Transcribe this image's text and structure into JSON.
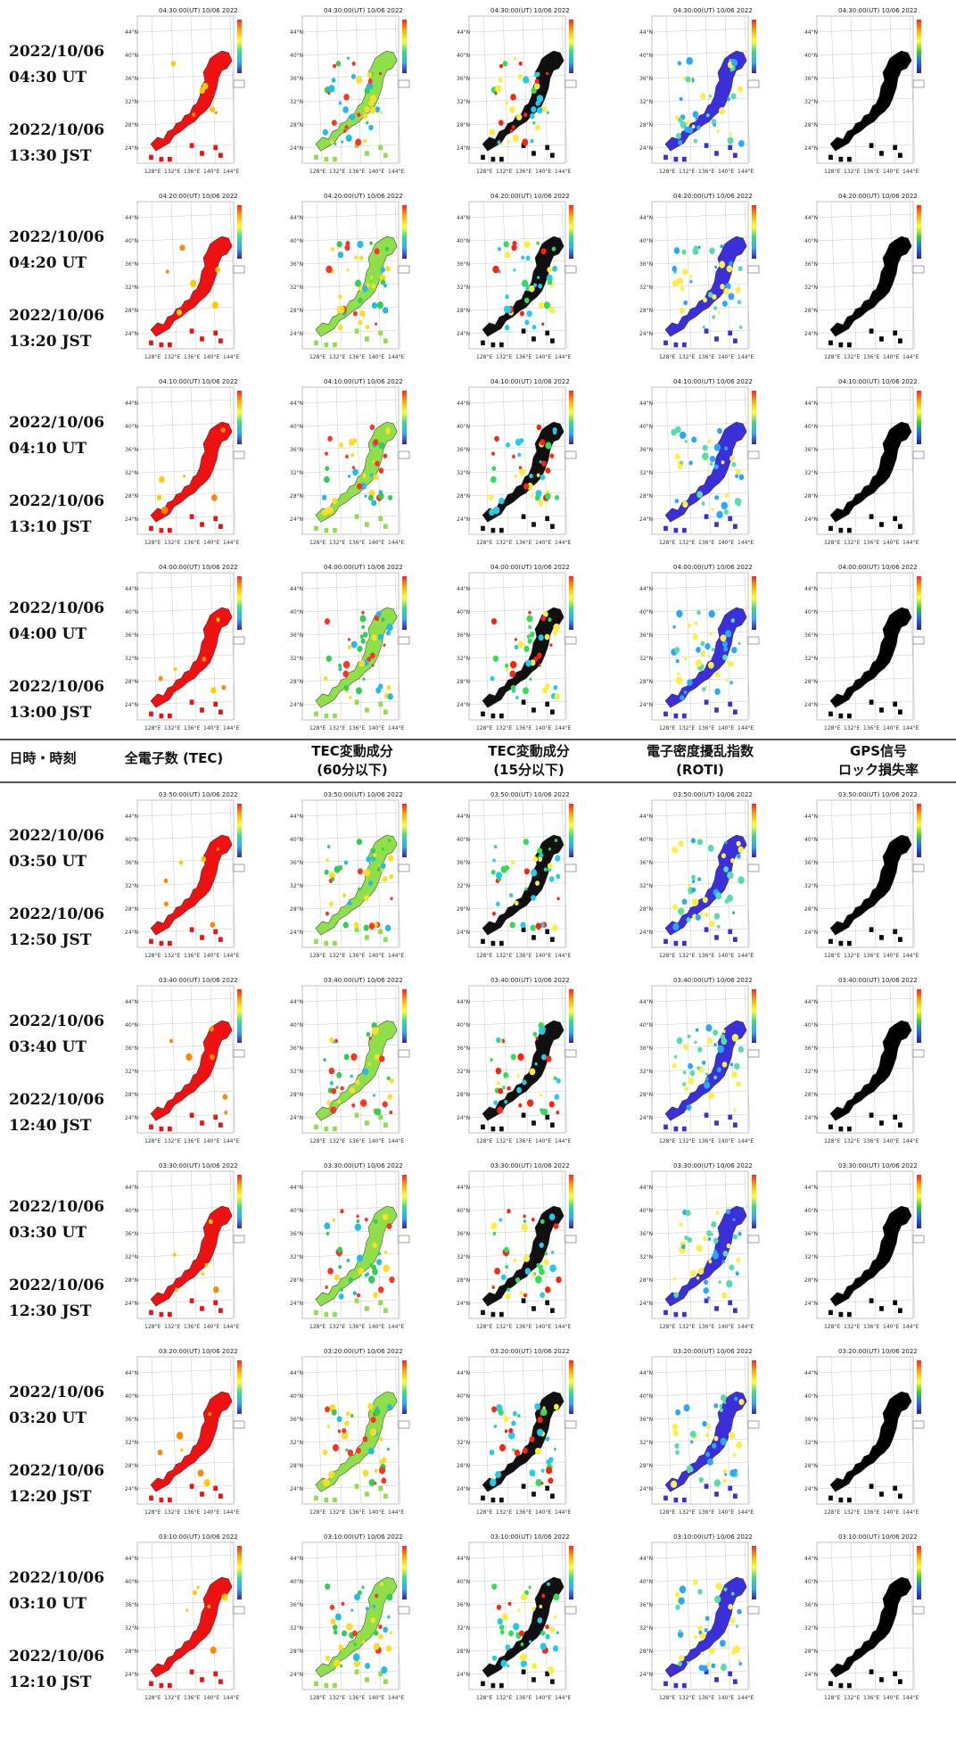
{
  "rows_top": [
    {
      "ut_date": "2022/10/06",
      "ut": "04:30 UT",
      "jst_date": "2022/10/06",
      "jst": "13:30 JST",
      "map_title": "04:30:00(UT) 10/06 2022"
    },
    {
      "ut_date": "2022/10/06",
      "ut": "04:20 UT",
      "jst_date": "2022/10/06",
      "jst": "13:20 JST",
      "map_title": "04:20:00(UT) 10/06 2022"
    },
    {
      "ut_date": "2022/10/06",
      "ut": "04:10 UT",
      "jst_date": "2022/10/06",
      "jst": "13:10 JST",
      "map_title": "04:10:00(UT) 10/06 2022"
    },
    {
      "ut_date": "2022/10/06",
      "ut": "04:00 UT",
      "jst_date": "2022/10/06",
      "jst": "13:00 JST",
      "map_title": "04:00:00(UT) 10/06 2022"
    }
  ],
  "rows_bottom": [
    {
      "ut_date": "2022/10/06",
      "ut": "03:50 UT",
      "jst_date": "2022/10/06",
      "jst": "12:50 JST",
      "map_title": "03:50:00(UT) 10/06 2022"
    },
    {
      "ut_date": "2022/10/06",
      "ut": "03:40 UT",
      "jst_date": "2022/10/06",
      "jst": "12:40 JST",
      "map_title": "03:40:00(UT) 10/06 2022"
    },
    {
      "ut_date": "2022/10/06",
      "ut": "03:30 UT",
      "jst_date": "2022/10/06",
      "jst": "12:30 JST",
      "map_title": "03:30:00(UT) 10/06 2022"
    },
    {
      "ut_date": "2022/10/06",
      "ut": "03:20 UT",
      "jst_date": "2022/10/06",
      "jst": "12:20 JST",
      "map_title": "03:20:00(UT) 10/06 2022"
    },
    {
      "ut_date": "2022/10/06",
      "ut": "03:10 UT",
      "jst_date": "2022/10/06",
      "jst": "12:10 JST",
      "map_title": "03:10:00(UT) 10/06 2022"
    }
  ],
  "header": {
    "col0": "日時・時刻",
    "col1": "全電子数 (TEC)",
    "col2_line1": "TEC変動成分",
    "col2_line2": "(60分以下)",
    "col3_line1": "TEC変動成分",
    "col3_line2": "(15分以下)",
    "col4_line1": "電子密度擾乱指数",
    "col4_line2": "(ROTI)",
    "col5_line1": "GPS信号",
    "col5_line2": "ロック損失率"
  },
  "map": {
    "lat_ticks": [
      "44°N",
      "40°N",
      "36°N",
      "32°N",
      "28°N",
      "24°N"
    ],
    "lon_ticks": [
      "128°E",
      "132°E",
      "136°E",
      "140°E",
      "144°E"
    ]
  },
  "colors": {
    "tec": "#ee1111",
    "tec_accent": "#ff8800",
    "bg_water": "#ffffff",
    "land_outline": "#333333",
    "black": "#000000",
    "roti_blue": "#3a2fd8",
    "roti_accent": "#2aa8ff"
  },
  "panel_types": [
    "tec",
    "d60",
    "d15",
    "roti",
    "loss"
  ]
}
